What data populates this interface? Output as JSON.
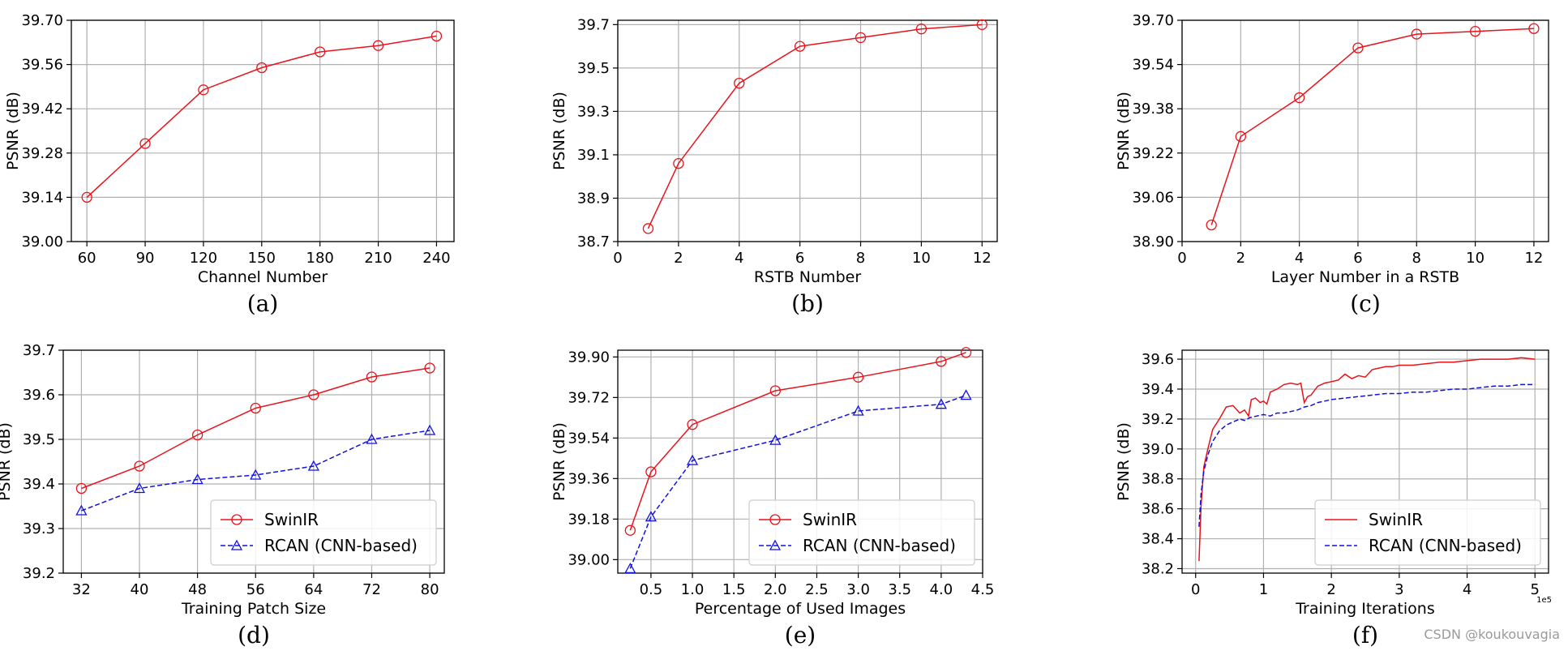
{
  "watermark": "CSDN @koukouvagia",
  "colors": {
    "swinir": "#e8131b",
    "rcan": "#1111e0",
    "grid": "#b0b0b0"
  },
  "chart_data": [
    {
      "caption": "(a)",
      "type": "line",
      "xlabel": "Channel Number",
      "ylabel": "PSNR (dB)",
      "xlim": [
        52,
        249
      ],
      "ylim": [
        39.0,
        39.7
      ],
      "xticks": [
        60,
        90,
        120,
        150,
        180,
        210,
        240
      ],
      "xtick_labels": [
        "60",
        "90",
        "120",
        "150",
        "180",
        "210",
        "240"
      ],
      "yticks": [
        39.0,
        39.14,
        39.28,
        39.42,
        39.56,
        39.7
      ],
      "ytick_labels": [
        "39.00",
        "39.14",
        "39.28",
        "39.42",
        "39.56",
        "39.70"
      ],
      "series": [
        {
          "name": "",
          "color": "#e8131b",
          "marker": "circle",
          "dashed": false,
          "x": [
            60,
            90,
            120,
            150,
            180,
            210,
            240
          ],
          "y": [
            39.14,
            39.31,
            39.48,
            39.55,
            39.6,
            39.62,
            39.65
          ]
        }
      ]
    },
    {
      "caption": "(b)",
      "type": "line",
      "xlabel": "RSTB Number",
      "ylabel": "PSNR (dB)",
      "xlim": [
        0,
        12.5
      ],
      "ylim": [
        38.7,
        39.72
      ],
      "xticks": [
        0,
        2,
        4,
        6,
        8,
        10,
        12
      ],
      "xtick_labels": [
        "0",
        "2",
        "4",
        "6",
        "8",
        "10",
        "12"
      ],
      "yticks": [
        38.7,
        38.9,
        39.1,
        39.3,
        39.5,
        39.7
      ],
      "ytick_labels": [
        "38.7",
        "38.9",
        "39.1",
        "39.3",
        "39.5",
        "39.7"
      ],
      "series": [
        {
          "name": "",
          "color": "#e8131b",
          "marker": "circle",
          "dashed": false,
          "x": [
            1,
            2,
            4,
            6,
            8,
            10,
            12
          ],
          "y": [
            38.76,
            39.06,
            39.43,
            39.6,
            39.64,
            39.68,
            39.7
          ]
        }
      ]
    },
    {
      "caption": "(c)",
      "type": "line",
      "xlabel": "Layer Number in a RSTB",
      "ylabel": "PSNR (dB)",
      "xlim": [
        0,
        12.5
      ],
      "ylim": [
        38.9,
        39.7
      ],
      "xticks": [
        0,
        2,
        4,
        6,
        8,
        10,
        12
      ],
      "xtick_labels": [
        "0",
        "2",
        "4",
        "6",
        "8",
        "10",
        "12"
      ],
      "yticks": [
        38.9,
        39.06,
        39.22,
        39.38,
        39.54,
        39.7
      ],
      "ytick_labels": [
        "38.90",
        "39.06",
        "39.22",
        "39.38",
        "39.54",
        "39.70"
      ],
      "series": [
        {
          "name": "",
          "color": "#e8131b",
          "marker": "circle",
          "dashed": false,
          "x": [
            1,
            2,
            4,
            6,
            8,
            10,
            12
          ],
          "y": [
            38.96,
            39.28,
            39.42,
            39.6,
            39.65,
            39.66,
            39.67
          ]
        }
      ]
    },
    {
      "caption": "(d)",
      "type": "line",
      "xlabel": "Training Patch Size",
      "ylabel": "PSNR (dB)",
      "xlim": [
        29.5,
        82
      ],
      "ylim": [
        39.2,
        39.7
      ],
      "xticks": [
        32,
        40,
        48,
        56,
        64,
        72,
        80
      ],
      "xtick_labels": [
        "32",
        "40",
        "48",
        "56",
        "64",
        "72",
        "80"
      ],
      "yticks": [
        39.2,
        39.3,
        39.4,
        39.5,
        39.6,
        39.7
      ],
      "ytick_labels": [
        "39.2",
        "39.3",
        "39.4",
        "39.5",
        "39.6",
        "39.7"
      ],
      "legend": "lower right",
      "series": [
        {
          "name": "SwinIR",
          "color": "#e8131b",
          "marker": "circle",
          "dashed": false,
          "x": [
            32,
            40,
            48,
            56,
            64,
            72,
            80
          ],
          "y": [
            39.39,
            39.44,
            39.51,
            39.57,
            39.6,
            39.64,
            39.66
          ]
        },
        {
          "name": "RCAN (CNN-based)",
          "color": "#1111e0",
          "marker": "triangle",
          "dashed": true,
          "x": [
            32,
            40,
            48,
            56,
            64,
            72,
            80
          ],
          "y": [
            39.34,
            39.39,
            39.41,
            39.42,
            39.44,
            39.5,
            39.52
          ]
        }
      ]
    },
    {
      "caption": "(e)",
      "type": "line",
      "xlabel": "Percentage of Used Images",
      "ylabel": "PSNR (dB)",
      "xlim": [
        0.1,
        4.5
      ],
      "ylim": [
        38.94,
        39.93
      ],
      "xticks": [
        0.5,
        1.0,
        1.5,
        2.0,
        2.5,
        3.0,
        3.5,
        4.0,
        4.5
      ],
      "xtick_labels": [
        "0.5",
        "1.0",
        "1.5",
        "2.0",
        "2.5",
        "3.0",
        "3.5",
        "4.0",
        "4.5"
      ],
      "yticks": [
        39.0,
        39.18,
        39.36,
        39.54,
        39.72,
        39.9
      ],
      "ytick_labels": [
        "39.00",
        "39.18",
        "39.36",
        "39.54",
        "39.72",
        "39.90"
      ],
      "legend": "lower right",
      "series": [
        {
          "name": "SwinIR",
          "color": "#e8131b",
          "marker": "circle",
          "dashed": false,
          "x": [
            0.25,
            0.5,
            1.0,
            2.0,
            3.0,
            4.0,
            4.3
          ],
          "y": [
            39.13,
            39.39,
            39.6,
            39.75,
            39.81,
            39.88,
            39.92
          ]
        },
        {
          "name": "RCAN (CNN-based)",
          "color": "#1111e0",
          "marker": "triangle",
          "dashed": true,
          "x": [
            0.25,
            0.5,
            1.0,
            2.0,
            3.0,
            4.0,
            4.3
          ],
          "y": [
            38.96,
            39.19,
            39.44,
            39.53,
            39.66,
            39.69,
            39.73
          ]
        }
      ]
    },
    {
      "caption": "(f)",
      "type": "line",
      "xlabel": "Training Iterations",
      "ylabel": "PSNR (dB)",
      "offset_label": "1e5",
      "xlim": [
        -0.2,
        5.2
      ],
      "ylim": [
        38.17,
        39.66
      ],
      "xticks": [
        0,
        1,
        2,
        3,
        4,
        5
      ],
      "xtick_labels": [
        "0",
        "1",
        "2",
        "3",
        "4",
        "5"
      ],
      "yticks": [
        38.2,
        38.4,
        38.6,
        38.8,
        39.0,
        39.2,
        39.4,
        39.6
      ],
      "ytick_labels": [
        "38.2",
        "38.4",
        "38.6",
        "38.8",
        "39.0",
        "39.2",
        "39.4",
        "39.6"
      ],
      "legend": "lower right",
      "series": [
        {
          "name": "SwinIR",
          "color": "#e8131b",
          "marker": "none",
          "dashed": false,
          "x": [
            0.05,
            0.08,
            0.12,
            0.18,
            0.25,
            0.35,
            0.45,
            0.55,
            0.65,
            0.72,
            0.78,
            0.82,
            0.88,
            0.95,
            1.0,
            1.05,
            1.1,
            1.2,
            1.3,
            1.4,
            1.5,
            1.55,
            1.6,
            1.65,
            1.7,
            1.8,
            1.9,
            2.0,
            2.1,
            2.2,
            2.3,
            2.4,
            2.5,
            2.6,
            2.7,
            2.8,
            2.9,
            3.0,
            3.2,
            3.4,
            3.6,
            3.8,
            4.0,
            4.2,
            4.4,
            4.6,
            4.8,
            5.0
          ],
          "y": [
            38.25,
            38.62,
            38.88,
            39.0,
            39.13,
            39.2,
            39.28,
            39.29,
            39.24,
            39.26,
            39.22,
            39.33,
            39.34,
            39.31,
            39.32,
            39.3,
            39.38,
            39.4,
            39.43,
            39.44,
            39.43,
            39.44,
            39.31,
            39.35,
            39.36,
            39.42,
            39.44,
            39.45,
            39.46,
            39.5,
            39.47,
            39.49,
            39.48,
            39.53,
            39.54,
            39.55,
            39.55,
            39.56,
            39.56,
            39.57,
            39.58,
            39.58,
            39.59,
            39.6,
            39.6,
            39.6,
            39.61,
            39.6
          ]
        },
        {
          "name": "RCAN (CNN-based)",
          "color": "#1111e0",
          "marker": "none",
          "dashed": true,
          "x": [
            0.05,
            0.08,
            0.12,
            0.18,
            0.25,
            0.35,
            0.45,
            0.55,
            0.65,
            0.72,
            0.8,
            0.9,
            1.0,
            1.1,
            1.2,
            1.3,
            1.4,
            1.5,
            1.6,
            1.7,
            1.8,
            1.9,
            2.0,
            2.2,
            2.4,
            2.6,
            2.8,
            3.0,
            3.2,
            3.4,
            3.6,
            3.8,
            4.0,
            4.2,
            4.4,
            4.6,
            4.8,
            5.0
          ],
          "y": [
            38.48,
            38.7,
            38.85,
            38.96,
            39.05,
            39.12,
            39.16,
            39.18,
            39.2,
            39.19,
            39.21,
            39.22,
            39.23,
            39.22,
            39.24,
            39.24,
            39.25,
            39.26,
            39.28,
            39.29,
            39.31,
            39.32,
            39.33,
            39.34,
            39.35,
            39.36,
            39.37,
            39.37,
            39.38,
            39.38,
            39.39,
            39.4,
            39.4,
            39.41,
            39.42,
            39.42,
            39.43,
            39.43
          ]
        }
      ]
    }
  ]
}
